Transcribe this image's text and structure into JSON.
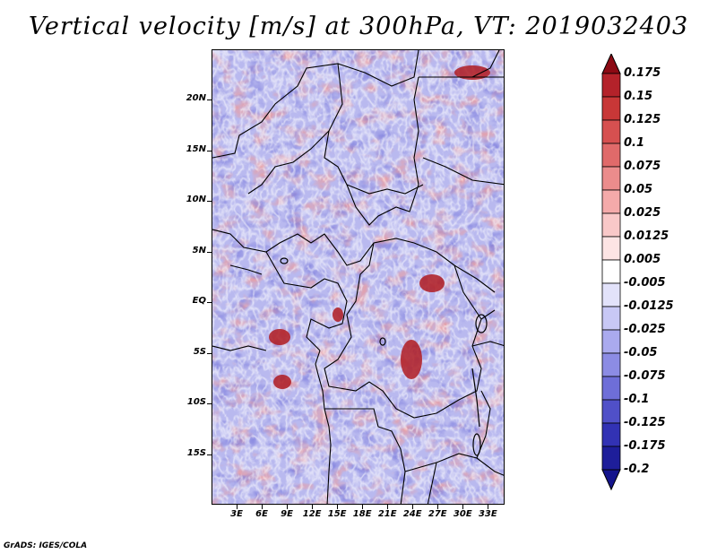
{
  "title": "Vertical velocity [m/s] at 300hPa, VT: 2019032403",
  "credit": "GrADS: IGES/COLA",
  "map": {
    "lon_range": [
      0,
      35
    ],
    "lat_range": [
      -20,
      25
    ],
    "lat_ticks": [
      {
        "value": 20,
        "label": "20N"
      },
      {
        "value": 15,
        "label": "15N"
      },
      {
        "value": 10,
        "label": "10N"
      },
      {
        "value": 5,
        "label": "5N"
      },
      {
        "value": 0,
        "label": "EQ"
      },
      {
        "value": -5,
        "label": "5S"
      },
      {
        "value": -10,
        "label": "10S"
      },
      {
        "value": -15,
        "label": "15S"
      }
    ],
    "lon_ticks": [
      {
        "value": 3,
        "label": "3E"
      },
      {
        "value": 6,
        "label": "6E"
      },
      {
        "value": 9,
        "label": "9E"
      },
      {
        "value": 12,
        "label": "12E"
      },
      {
        "value": 15,
        "label": "15E"
      },
      {
        "value": 18,
        "label": "18E"
      },
      {
        "value": 21,
        "label": "21E"
      },
      {
        "value": 24,
        "label": "24E"
      },
      {
        "value": 27,
        "label": "27E"
      },
      {
        "value": 30,
        "label": "30E"
      },
      {
        "value": 33,
        "label": "33E"
      }
    ]
  },
  "colorbar": {
    "levels": [
      {
        "label": "0.175",
        "color": "#a0141e"
      },
      {
        "label": "0.15",
        "color": "#b4222a"
      },
      {
        "label": "0.125",
        "color": "#c83737"
      },
      {
        "label": "0.1",
        "color": "#d65050"
      },
      {
        "label": "0.075",
        "color": "#e06a6a"
      },
      {
        "label": "0.05",
        "color": "#eb8c8c"
      },
      {
        "label": "0.025",
        "color": "#f4aaaa"
      },
      {
        "label": "0.0125",
        "color": "#f9c8c8"
      },
      {
        "label": "0.005",
        "color": "#fde4e4"
      },
      {
        "label": "-0.005",
        "color": "#ffffff"
      },
      {
        "label": "-0.0125",
        "color": "#e2e2fa"
      },
      {
        "label": "-0.025",
        "color": "#c8c8f5"
      },
      {
        "label": "-0.05",
        "color": "#aaaaee"
      },
      {
        "label": "-0.075",
        "color": "#8c8ce4"
      },
      {
        "label": "-0.1",
        "color": "#6e6ed8"
      },
      {
        "label": "-0.125",
        "color": "#5050c8"
      },
      {
        "label": "-0.175",
        "color": "#3232b4"
      },
      {
        "label": "-0.2",
        "color": "#1e1e9a"
      }
    ],
    "top_color": "#8c0a14",
    "bottom_color": "#14148c"
  }
}
